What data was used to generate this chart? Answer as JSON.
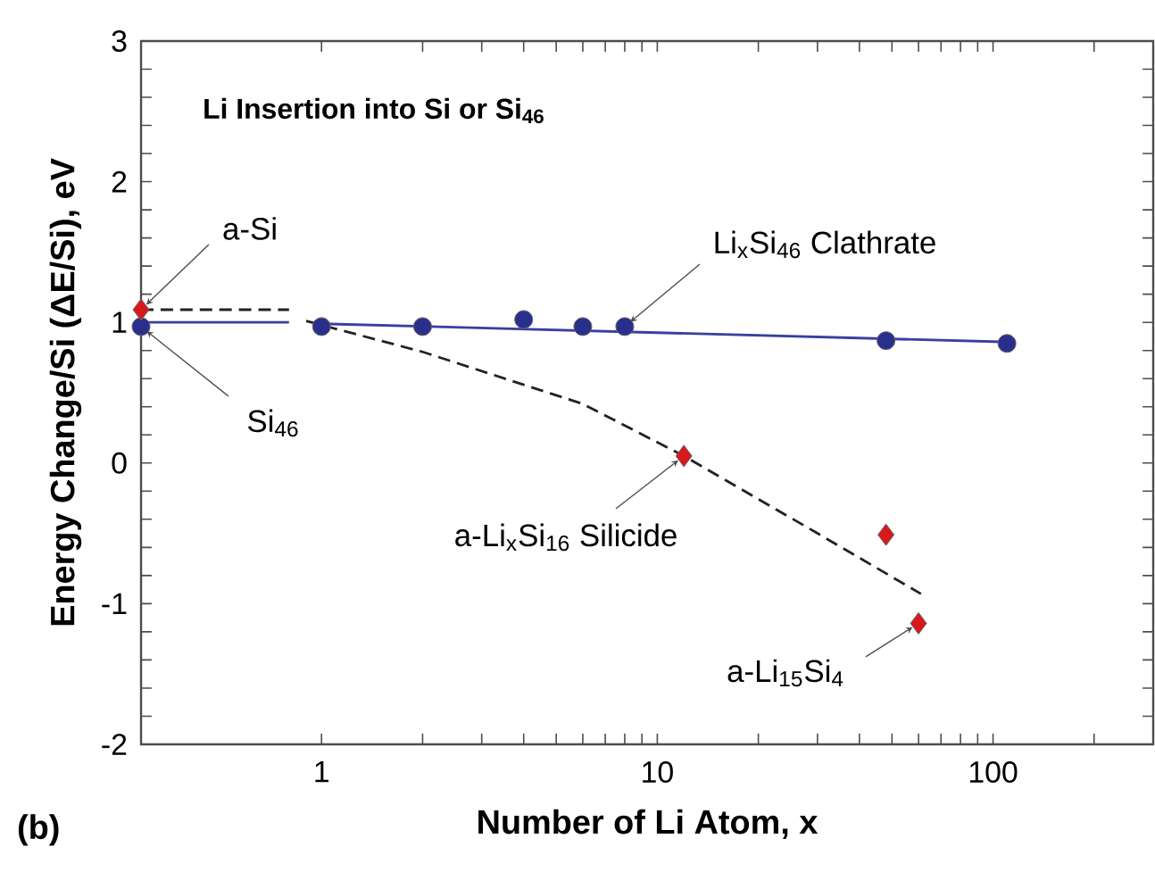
{
  "chart_data": {
    "type": "scatter",
    "title": "Li Insertion into Si or Si$_{46}$",
    "xlabel": "Number of Li Atom, x",
    "ylabel": "Energy Change/Si (ΔE/Si), eV",
    "log": "x",
    "xlim": [
      0.29,
      300
    ],
    "ylim": [
      -2,
      3
    ],
    "xticks": [
      1,
      {
        "value": 2,
        "label": null
      },
      {
        "value": 3,
        "label": null
      },
      {
        "value": 4,
        "label": null
      },
      {
        "value": 5,
        "label": null
      },
      {
        "value": 6,
        "label": null
      },
      {
        "value": 7,
        "label": null
      },
      {
        "value": 8,
        "label": null
      },
      {
        "value": 9,
        "label": null
      },
      10,
      {
        "value": 20,
        "label": null
      },
      {
        "value": 30,
        "label": null
      },
      {
        "value": 40,
        "label": null
      },
      {
        "value": 50,
        "label": null
      },
      {
        "value": 60,
        "label": null
      },
      {
        "value": 70,
        "label": null
      },
      {
        "value": 80,
        "label": null
      },
      {
        "value": 90,
        "label": null
      },
      100,
      {
        "value": 200,
        "label": null
      }
    ],
    "yticks": [
      -2,
      {
        "value": -1.8,
        "label": null
      },
      {
        "value": -1.6,
        "label": null
      },
      {
        "value": -1.4,
        "label": null
      },
      {
        "value": -1.2,
        "label": null
      },
      -1,
      {
        "value": -0.8,
        "label": null
      },
      {
        "value": -0.6,
        "label": null
      },
      {
        "value": -0.4,
        "label": null
      },
      {
        "value": -0.2,
        "label": null
      },
      0,
      {
        "value": 0.2,
        "label": null
      },
      {
        "value": 0.4,
        "label": null
      },
      {
        "value": 0.6,
        "label": null
      },
      {
        "value": 0.8,
        "label": null
      },
      1,
      {
        "value": 1.2,
        "label": null
      },
      {
        "value": 1.4,
        "label": null
      },
      {
        "value": 1.6,
        "label": null
      },
      {
        "value": 1.8,
        "label": null
      },
      2,
      {
        "value": 2.2,
        "label": null
      },
      {
        "value": 2.4,
        "label": null
      },
      {
        "value": 2.6,
        "label": null
      },
      {
        "value": 2.8,
        "label": null
      },
      3
    ],
    "series": [
      {
        "type": "line",
        "color": "#3a3fa0",
        "line_style": "solid",
        "marker": "none",
        "x": [
          0.29,
          0.8,
          0.9,
          1,
          112
        ],
        "values": [
          1.0,
          1.0,
          null,
          0.99,
          0.86
        ]
      },
      {
        "type": "line",
        "color": "#222222",
        "line_style": "dashed",
        "marker": "none",
        "x": [
          0.29,
          0.8,
          0.85,
          0.9,
          2,
          6,
          12,
          30,
          61
        ],
        "values": [
          1.09,
          1.09,
          null,
          1.01,
          0.79,
          0.42,
          0.05,
          -0.5,
          -0.93
        ]
      },
      {
        "type": "scatter",
        "color": "#2b2f8c",
        "marker": "circle",
        "x": [
          0.29,
          1,
          2,
          4,
          6,
          8,
          48,
          110
        ],
        "values": [
          0.97,
          0.97,
          0.97,
          1.02,
          0.97,
          0.97,
          0.87,
          0.85
        ]
      },
      {
        "type": "scatter",
        "color": "#d7191c",
        "marker": "diamond",
        "x": [
          0.29,
          12,
          48,
          60
        ],
        "values": [
          1.09,
          0.05,
          -0.51,
          -1.14
        ]
      }
    ],
    "annotations": [
      {
        "text": "a-Si",
        "x": 0.29,
        "y": 1.09
      },
      {
        "text": "Si$_{46}$",
        "x": 0.29,
        "y": 0.97
      },
      {
        "text": "Li$_{x}$Si$_{46}$ Clathrate",
        "x": 8,
        "y": 0.97
      },
      {
        "text": "a-Li$_{x}$Si$_{16}$ Silicide",
        "x": 12,
        "y": 0.05
      },
      {
        "text": "a-Li$_{15}$Si$_{4}$",
        "x": 60,
        "y": -1.14
      },
      "(b)"
    ]
  }
}
